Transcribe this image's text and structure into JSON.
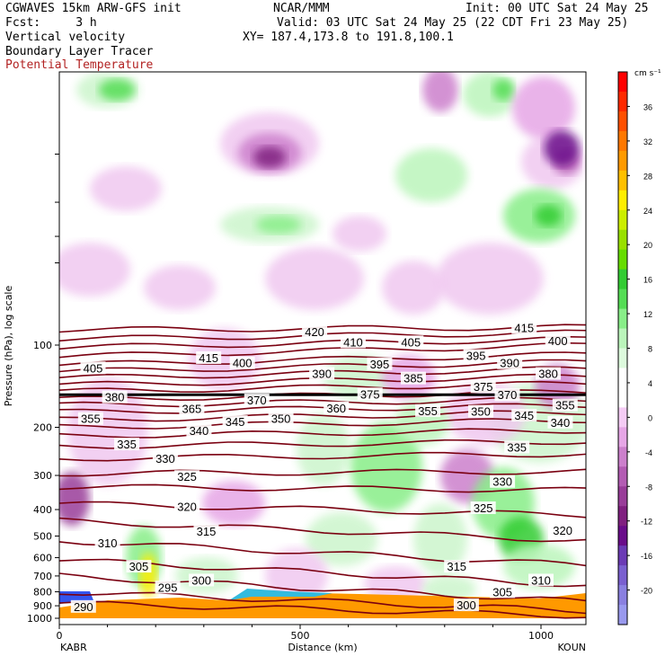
{
  "header": {
    "title_left": "CGWAVES 15km ARW-GFS init",
    "title_center": "NCAR/MMM",
    "init": "Init: 00 UTC Sat 24 May 25",
    "fcst": "Fcst:     3 h",
    "valid": "Valid: 03 UTC Sat 24 May 25 (22 CDT Fri 23 May 25)",
    "field1": "Vertical velocity",
    "field2": "Boundary Layer Tracer",
    "field3": "Potential Temperature",
    "xy": "XY= 187.4,173.8 to 191.8,100.1"
  },
  "colors": {
    "theta": "#7a0010",
    "field3_label": "#b22222",
    "tracer_orange": "#ff9900",
    "plot_border": "#000000"
  },
  "chart_data": {
    "type": "heatmap",
    "title": "Vertical velocity / Boundary Layer Tracer / Potential Temperature",
    "xlabel": "Distance (km)",
    "ylabel": "Pressure (hPa), log scale",
    "x_ticks": [
      0,
      500,
      1000
    ],
    "xlim": [
      0,
      1100
    ],
    "x_endpoints": {
      "left": "KABR",
      "right": "KOUN"
    },
    "y_ticks": [
      100,
      200,
      300,
      400,
      500,
      600,
      700,
      800,
      900,
      1000
    ],
    "ylim": [
      1000,
      10
    ],
    "y_scale": "log",
    "colorbar": {
      "unit": "cm s⁻¹",
      "ticks": [
        36,
        32,
        28,
        24,
        20,
        16,
        12,
        8,
        4,
        0,
        -4,
        -8,
        -12,
        -16,
        -20
      ],
      "colors": [
        "#ff0000",
        "#ff2a00",
        "#ff5000",
        "#ff7800",
        "#ff9a00",
        "#ffc000",
        "#ffee00",
        "#ccee00",
        "#99e000",
        "#66dd00",
        "#33cc33",
        "#55dd55",
        "#88ee88",
        "#bbf5bb",
        "#ddfadd",
        "#ffffff",
        "#ffffff",
        "#f5ccf5",
        "#e6a6e6",
        "#cc80cc",
        "#b35cb3",
        "#993d99",
        "#802080",
        "#6a0d8a",
        "#6b3bb5",
        "#7a60d0",
        "#8a80e0",
        "#9999ee"
      ]
    },
    "theta_labels": [
      {
        "v": "415",
        "x": 310,
        "p": 112
      },
      {
        "v": "420",
        "x": 530,
        "p": 90
      },
      {
        "v": "410",
        "x": 610,
        "p": 98
      },
      {
        "v": "405",
        "x": 730,
        "p": 98
      },
      {
        "v": "415",
        "x": 965,
        "p": 87
      },
      {
        "v": "400",
        "x": 1035,
        "p": 97
      },
      {
        "v": "405",
        "x": 70,
        "p": 122
      },
      {
        "v": "400",
        "x": 380,
        "p": 117
      },
      {
        "v": "390",
        "x": 545,
        "p": 128
      },
      {
        "v": "395",
        "x": 665,
        "p": 118
      },
      {
        "v": "395",
        "x": 865,
        "p": 110
      },
      {
        "v": "390",
        "x": 935,
        "p": 117
      },
      {
        "v": "380",
        "x": 1015,
        "p": 128
      },
      {
        "v": "385",
        "x": 735,
        "p": 133
      },
      {
        "v": "375",
        "x": 645,
        "p": 152
      },
      {
        "v": "375",
        "x": 880,
        "p": 143
      },
      {
        "v": "370",
        "x": 930,
        "p": 153
      },
      {
        "v": "380",
        "x": 115,
        "p": 156
      },
      {
        "v": "370",
        "x": 410,
        "p": 160
      },
      {
        "v": "365",
        "x": 275,
        "p": 172
      },
      {
        "v": "360",
        "x": 575,
        "p": 171
      },
      {
        "v": "355",
        "x": 765,
        "p": 175
      },
      {
        "v": "350",
        "x": 875,
        "p": 176
      },
      {
        "v": "345",
        "x": 965,
        "p": 182
      },
      {
        "v": "355",
        "x": 1050,
        "p": 167
      },
      {
        "v": "355",
        "x": 65,
        "p": 187
      },
      {
        "v": "345",
        "x": 365,
        "p": 192
      },
      {
        "v": "350",
        "x": 460,
        "p": 187
      },
      {
        "v": "340",
        "x": 290,
        "p": 207
      },
      {
        "v": "340",
        "x": 1040,
        "p": 193
      },
      {
        "v": "335",
        "x": 140,
        "p": 232
      },
      {
        "v": "330",
        "x": 220,
        "p": 262
      },
      {
        "v": "335",
        "x": 950,
        "p": 238
      },
      {
        "v": "325",
        "x": 265,
        "p": 305
      },
      {
        "v": "330",
        "x": 920,
        "p": 318
      },
      {
        "v": "320",
        "x": 265,
        "p": 392
      },
      {
        "v": "325",
        "x": 880,
        "p": 397
      },
      {
        "v": "315",
        "x": 305,
        "p": 483
      },
      {
        "v": "320",
        "x": 1045,
        "p": 480
      },
      {
        "v": "310",
        "x": 100,
        "p": 533
      },
      {
        "v": "305",
        "x": 165,
        "p": 650
      },
      {
        "v": "315",
        "x": 825,
        "p": 650
      },
      {
        "v": "300",
        "x": 295,
        "p": 730
      },
      {
        "v": "295",
        "x": 225,
        "p": 775
      },
      {
        "v": "310",
        "x": 1000,
        "p": 730
      },
      {
        "v": "305",
        "x": 920,
        "p": 805
      },
      {
        "v": "300",
        "x": 845,
        "p": 900
      },
      {
        "v": "290",
        "x": 50,
        "p": 912
      }
    ]
  }
}
